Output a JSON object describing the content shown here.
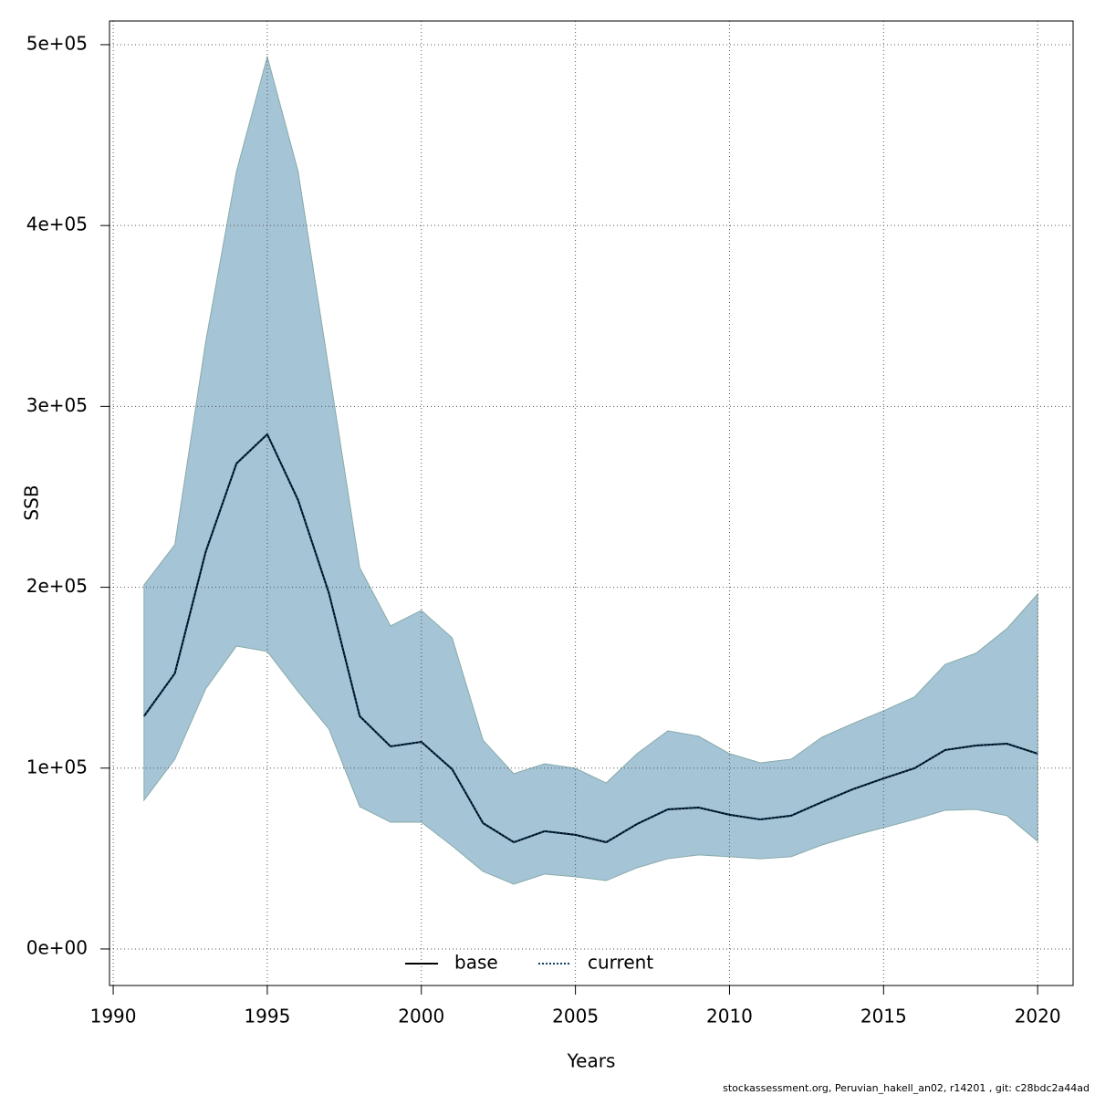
{
  "chart_data": {
    "type": "line",
    "xlabel": "Years",
    "ylabel": "SSB",
    "footer": "stockassessment.org, Peruvian_hakell_an02, r14201 , git: c28bdc2a44ad",
    "x": [
      1991,
      1992,
      1993,
      1994,
      1995,
      1996,
      1997,
      1998,
      1999,
      2000,
      2001,
      2002,
      2003,
      2004,
      2005,
      2006,
      2007,
      2008,
      2009,
      2010,
      2011,
      2012,
      2013,
      2014,
      2015,
      2016,
      2017,
      2018,
      2019,
      2020
    ],
    "band": {
      "color": "#a5c4d6",
      "upper": [
        201300,
        223500,
        335500,
        429900,
        493400,
        429900,
        320400,
        210900,
        178600,
        187200,
        172000,
        115500,
        96900,
        102400,
        99900,
        91800,
        108000,
        120600,
        117600,
        108000,
        102900,
        104900,
        117100,
        124600,
        131700,
        139300,
        157400,
        163500,
        177100,
        196300
      ],
      "lower": [
        82200,
        104900,
        143800,
        167500,
        164500,
        142300,
        121600,
        78700,
        70100,
        70100,
        57000,
        42900,
        35800,
        41400,
        39900,
        37800,
        44900,
        49900,
        52000,
        51000,
        49900,
        51000,
        57500,
        62600,
        67100,
        71600,
        76700,
        77200,
        73700,
        59500
      ]
    },
    "series": [
      {
        "name": "base",
        "color": "#000000",
        "dash": false,
        "values": [
          128700,
          152400,
          219500,
          268400,
          284600,
          248200,
          196800,
          128700,
          112000,
          114500,
          99400,
          69600,
          59000,
          65100,
          63100,
          59000,
          69100,
          77200,
          78200,
          74200,
          71600,
          73700,
          81200,
          88300,
          94300,
          99900,
          110000,
          112500,
          113500,
          108000
        ]
      },
      {
        "name": "current",
        "color": "#0b3f66",
        "dash": true,
        "values": [
          128700,
          152400,
          219500,
          268400,
          284600,
          248200,
          196800,
          128700,
          112000,
          114500,
          99400,
          69600,
          59000,
          65100,
          63100,
          59000,
          69100,
          77200,
          78200,
          74200,
          71600,
          73700,
          81200,
          88300,
          94300,
          99900,
          110000,
          112500,
          113500,
          108000
        ]
      }
    ],
    "xlim": [
      1989.88,
      2021.15
    ],
    "ylim": [
      -20200,
      513100
    ],
    "xticks": [
      1990,
      1995,
      2000,
      2005,
      2010,
      2015,
      2020
    ],
    "yticks": [
      {
        "value": 0,
        "label": "0e+00"
      },
      {
        "value": 100000,
        "label": "1e+05"
      },
      {
        "value": 200000,
        "label": "2e+05"
      },
      {
        "value": 300000,
        "label": "3e+05"
      },
      {
        "value": 400000,
        "label": "4e+05"
      },
      {
        "value": 500000,
        "label": "5e+05"
      }
    ],
    "grid": true,
    "legend": "bottom"
  }
}
